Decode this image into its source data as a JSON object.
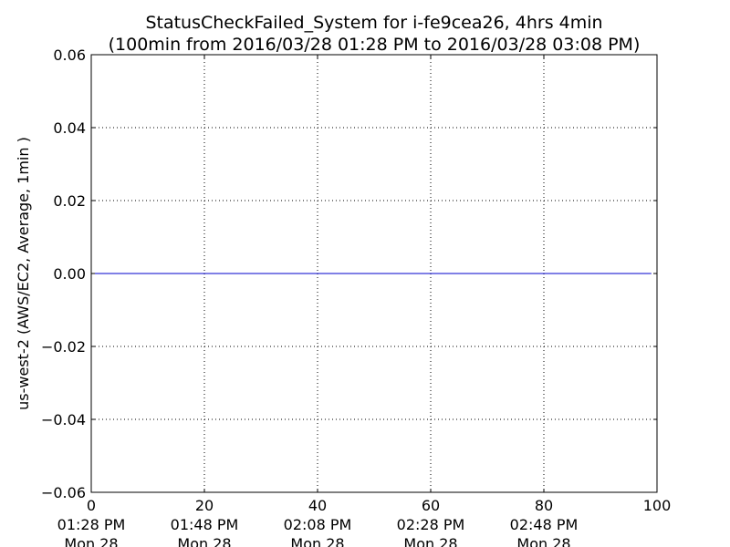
{
  "chart_data": {
    "type": "line",
    "title": "StatusCheckFailed_System for i-fe9cea26, 4hrs 4min",
    "subtitle": "(100min from 2016/03/28 01:28 PM to 2016/03/28 03:08 PM)",
    "xlabel": "",
    "ylabel": "us-west-2 (AWS/EC2, Average, 1min )",
    "xlim": [
      0,
      100
    ],
    "ylim": [
      -0.06,
      0.06
    ],
    "grid": true,
    "x_ticks": [
      {
        "value": 0,
        "label": "0",
        "time": "01:28 PM",
        "date": "Mon 28"
      },
      {
        "value": 20,
        "label": "20",
        "time": "01:48 PM",
        "date": "Mon 28"
      },
      {
        "value": 40,
        "label": "40",
        "time": "02:08 PM",
        "date": "Mon 28"
      },
      {
        "value": 60,
        "label": "60",
        "time": "02:28 PM",
        "date": "Mon 28"
      },
      {
        "value": 80,
        "label": "80",
        "time": "02:48 PM",
        "date": "Mon 28"
      },
      {
        "value": 100,
        "label": "100",
        "time": "",
        "date": ""
      }
    ],
    "y_ticks": [
      {
        "value": 0.06,
        "label": "0.06"
      },
      {
        "value": 0.04,
        "label": "0.04"
      },
      {
        "value": 0.02,
        "label": "0.02"
      },
      {
        "value": 0.0,
        "label": "0.00"
      },
      {
        "value": -0.02,
        "label": "−0.02"
      },
      {
        "value": -0.04,
        "label": "−0.04"
      },
      {
        "value": -0.06,
        "label": "−0.06"
      }
    ],
    "series": [
      {
        "color": "#0000cc",
        "x": [
          0,
          99
        ],
        "y": [
          0,
          0
        ]
      }
    ]
  }
}
